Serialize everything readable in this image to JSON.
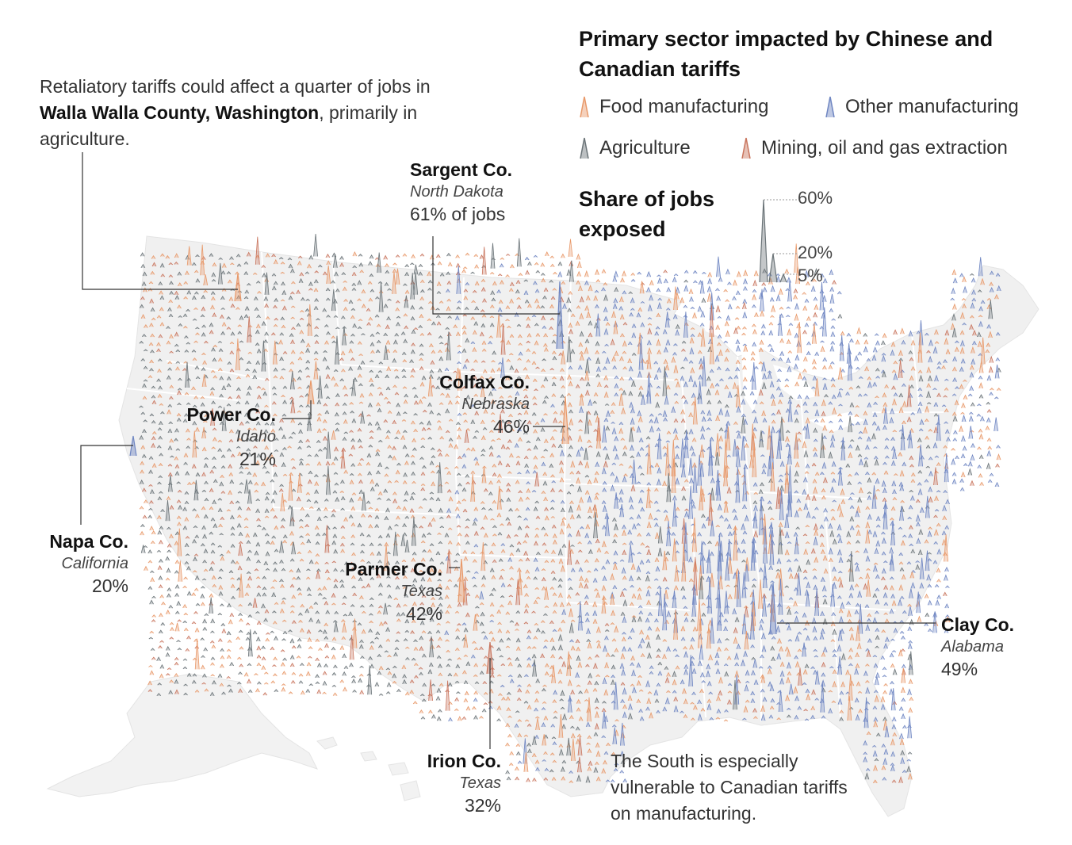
{
  "legend": {
    "title": "Primary sector impacted by Chinese and Canadian tariffs",
    "items": [
      {
        "label": "Food manufacturing",
        "color": "#e8996a"
      },
      {
        "label": "Other manufacturing",
        "color": "#6f86c2"
      },
      {
        "label": "Agriculture",
        "color": "#6b7478"
      },
      {
        "label": "Mining, oil and gas extraction",
        "color": "#c9755e"
      }
    ],
    "share_title": "Share of jobs exposed",
    "scale": [
      {
        "label": "60%",
        "value": 60
      },
      {
        "label": "20%",
        "value": 20
      },
      {
        "label": "5%",
        "value": 5
      }
    ]
  },
  "notes": {
    "walla_pre": "Retaliatory tariffs could affect a quarter of jobs in ",
    "walla_bold": "Walla Walla County, Washington",
    "walla_post": ", primarily in agriculture.",
    "south": "The South is especially vulnerable to Canadian tariffs on manufacturing."
  },
  "callouts": {
    "sargent": {
      "name": "Sargent Co.",
      "state": "North Dakota",
      "pct": "61% of jobs"
    },
    "colfax": {
      "name": "Colfax Co.",
      "state": "Nebraska",
      "pct": "46%"
    },
    "power": {
      "name": "Power Co.",
      "state": "Idaho",
      "pct": "21%"
    },
    "napa": {
      "name": "Napa Co.",
      "state": "California",
      "pct": "20%"
    },
    "parmer": {
      "name": "Parmer Co.",
      "state": "Texas",
      "pct": "42%"
    },
    "irion": {
      "name": "Irion Co.",
      "state": "Texas",
      "pct": "32%"
    },
    "clay": {
      "name": "Clay Co.",
      "state": "Alabama",
      "pct": "49%"
    }
  },
  "colors": {
    "land": "#f0f0f0",
    "border": "#ffffff",
    "leader": "#333333"
  }
}
